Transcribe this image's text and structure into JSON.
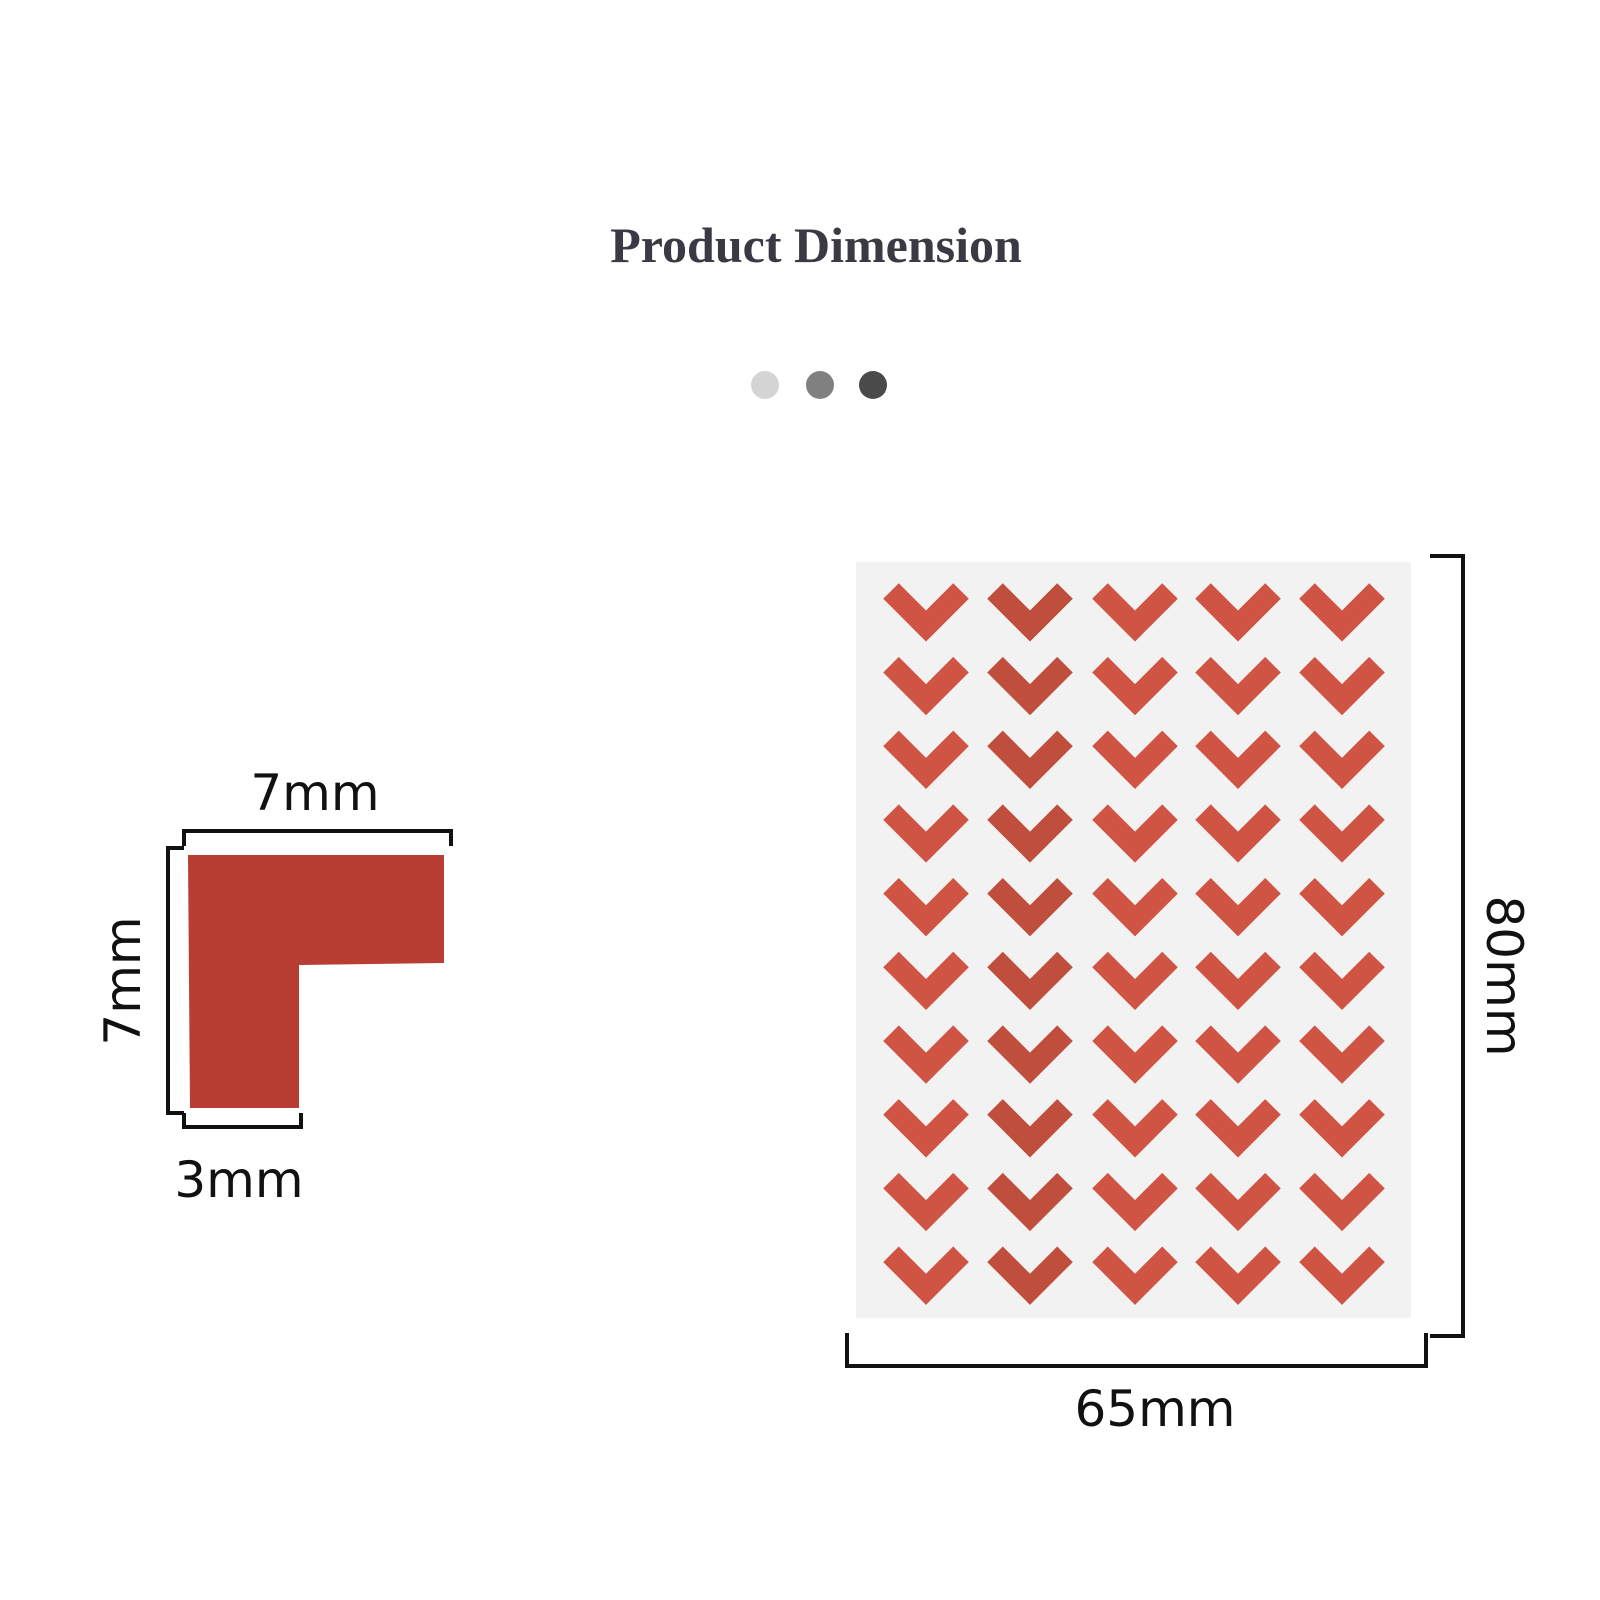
{
  "title": "Product Dimension",
  "corner": {
    "width": "7mm",
    "height": "7mm",
    "thickness": "3mm"
  },
  "sheet": {
    "height": "80mm",
    "width": "65mm"
  }
}
